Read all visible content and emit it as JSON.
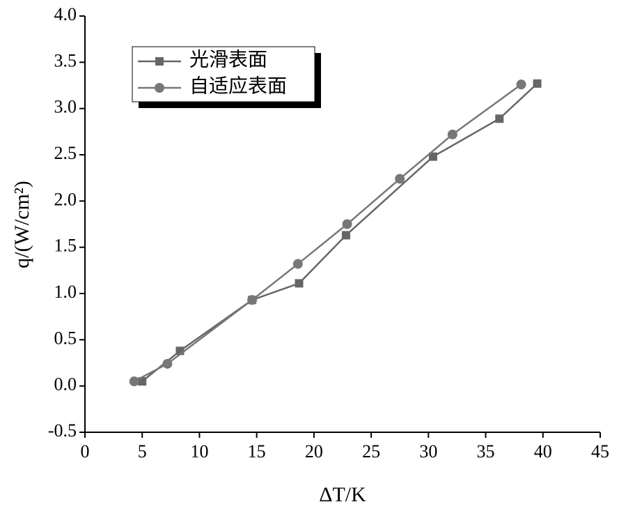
{
  "chart_data": {
    "type": "line",
    "x_label": "ΔT/K",
    "y_label": "q/(W/cm²)",
    "xlim": [
      0,
      45
    ],
    "xticks": [
      0,
      5,
      10,
      15,
      20,
      25,
      30,
      35,
      40,
      45
    ],
    "ylim": [
      -0.5,
      4.0
    ],
    "yticks": [
      -0.5,
      {
        "value": 0,
        "label": "0.0"
      },
      0.5,
      {
        "value": 1,
        "label": "1.0"
      },
      1.5,
      {
        "value": 2,
        "label": "2.0"
      },
      2.5,
      {
        "value": 3,
        "label": "3.0"
      },
      3.5,
      {
        "value": 4,
        "label": "4.0"
      }
    ],
    "legend": "upper left",
    "series": [
      {
        "name": "光滑表面",
        "color": "#666666",
        "marker": "square",
        "x": [
          5.0,
          8.3,
          14.6,
          18.7,
          22.8,
          30.4,
          36.2,
          39.5
        ],
        "values": [
          0.05,
          0.38,
          0.93,
          1.11,
          1.63,
          2.48,
          2.89,
          3.27
        ]
      },
      {
        "name": "自适应表面",
        "color": "#777777",
        "marker": "circle",
        "x": [
          4.3,
          7.2,
          14.6,
          18.6,
          22.9,
          27.5,
          32.1,
          38.1
        ],
        "values": [
          0.05,
          0.24,
          0.93,
          1.32,
          1.75,
          2.24,
          2.72,
          3.26
        ]
      }
    ]
  }
}
